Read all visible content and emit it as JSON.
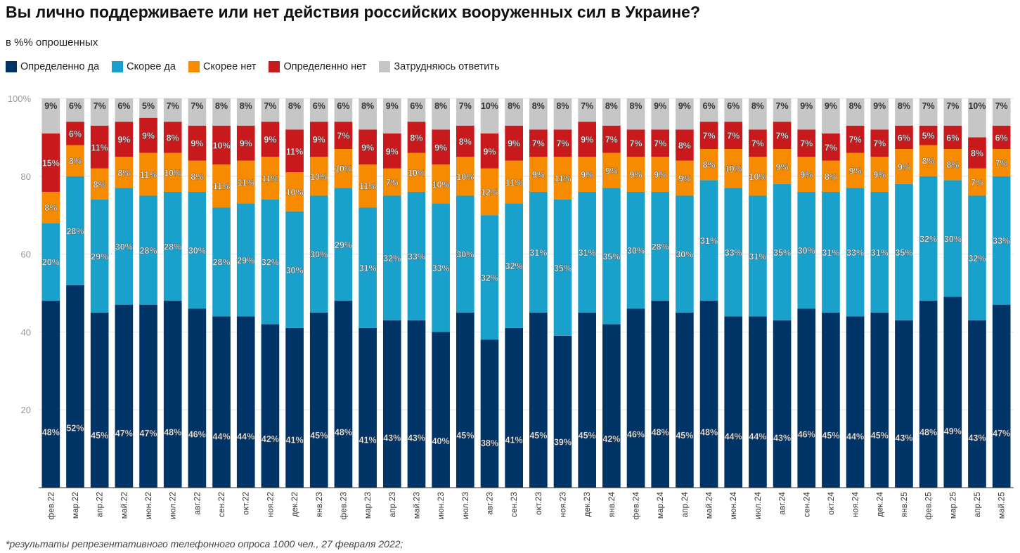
{
  "title": "Вы лично поддерживаете или нет действия российских вооруженных сил в Украине?",
  "subtitle": "в %% опрошенных",
  "footnote": "*результаты репрезентативного телефонного опроса 1000 чел., 27 февраля 2022;",
  "chart_data": {
    "type": "bar",
    "stacked": true,
    "title": "Вы лично поддерживаете или нет действия российских вооруженных сил в Украине?",
    "ylim": [
      0,
      100
    ],
    "yticks": [
      "20",
      "40",
      "60",
      "80",
      "100%"
    ],
    "grid": true,
    "legend": "top-left",
    "categories": [
      "фев.22",
      "мар.22",
      "апр.22",
      "май.22",
      "июн.22",
      "июл.22",
      "авг.22",
      "сен.22",
      "окт.22",
      "ноя.22",
      "дек.22",
      "янв.23",
      "фев.23",
      "мар.23",
      "апр.23",
      "май.23",
      "июн.23",
      "июл.23",
      "авг.23",
      "сен.23",
      "окт.23",
      "ноя.23",
      "дек.23",
      "янв.24",
      "фев.24",
      "мар.24",
      "апр.24",
      "май.24",
      "июн.24",
      "июл.24",
      "авг.24",
      "сен.24",
      "окт.24",
      "ноя.24",
      "дек.24",
      "янв.25",
      "фев.25",
      "мар.25",
      "апр.25",
      "май.25"
    ],
    "series": [
      {
        "name": "Определенно да",
        "color": "#003366",
        "label_color": "#ffffff",
        "values": [
          48,
          52,
          45,
          47,
          47,
          48,
          46,
          44,
          44,
          42,
          41,
          45,
          48,
          41,
          43,
          43,
          40,
          45,
          38,
          41,
          45,
          39,
          45,
          42,
          46,
          48,
          45,
          48,
          44,
          44,
          43,
          46,
          45,
          44,
          45,
          43,
          48,
          49,
          43,
          47
        ]
      },
      {
        "name": "Скорее да",
        "color": "#19a1cc",
        "label_color": "#ffffff",
        "values": [
          20,
          28,
          29,
          30,
          28,
          28,
          30,
          28,
          29,
          32,
          30,
          30,
          29,
          31,
          32,
          33,
          33,
          30,
          32,
          32,
          31,
          35,
          31,
          35,
          30,
          28,
          30,
          31,
          33,
          31,
          35,
          30,
          31,
          33,
          31,
          35,
          32,
          30,
          32,
          33
        ]
      },
      {
        "name": "Скорее нет",
        "color": "#f68b00",
        "label_color": "#ffffff",
        "values": [
          8,
          8,
          8,
          8,
          11,
          10,
          8,
          11,
          11,
          11,
          10,
          10,
          10,
          11,
          7,
          10,
          10,
          10,
          12,
          11,
          9,
          11,
          9,
          9,
          9,
          9,
          9,
          8,
          10,
          10,
          9,
          9,
          8,
          9,
          9,
          9,
          8,
          8,
          7,
          7
        ]
      },
      {
        "name": "Определенно нет",
        "color": "#c8191c",
        "label_color": "#ffffff",
        "values": [
          15,
          6,
          11,
          9,
          9,
          8,
          9,
          10,
          9,
          9,
          11,
          9,
          7,
          9,
          9,
          8,
          9,
          8,
          9,
          9,
          7,
          7,
          9,
          7,
          7,
          7,
          8,
          7,
          7,
          7,
          7,
          7,
          7,
          7,
          7,
          6,
          5,
          6,
          8,
          6
        ]
      },
      {
        "name": "Затрудняюсь ответить",
        "color": "#c6c6c6",
        "label_color": "#333333",
        "values": [
          9,
          6,
          7,
          6,
          5,
          7,
          7,
          8,
          8,
          7,
          8,
          6,
          6,
          8,
          9,
          6,
          8,
          7,
          10,
          8,
          8,
          8,
          7,
          8,
          8,
          9,
          9,
          6,
          6,
          8,
          7,
          9,
          9,
          8,
          9,
          8,
          7,
          7,
          10,
          7
        ]
      }
    ]
  }
}
